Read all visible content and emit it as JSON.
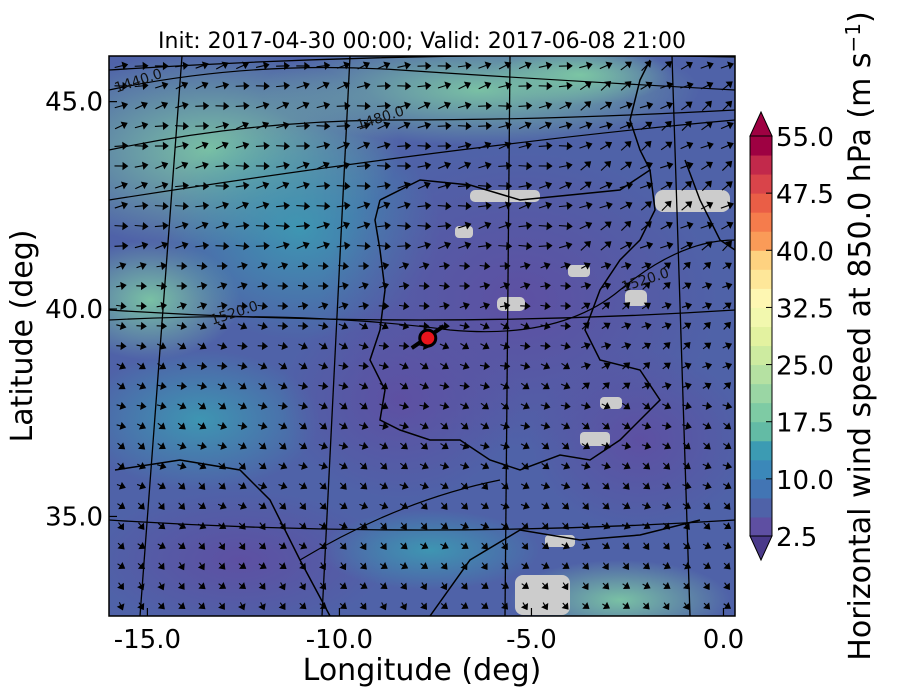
{
  "chart_data": {
    "type": "heatmap",
    "title": "Init: 2017-04-30 00:00; Valid: 2017-06-08 21:00",
    "xlabel": "Longitude (deg)",
    "ylabel": "Latitude (deg)",
    "xlim": [
      -16.0,
      0.3
    ],
    "ylim": [
      32.6,
      46.1
    ],
    "x_ticks": [
      {
        "value": -15.0,
        "label": "-15.0"
      },
      {
        "value": -10.0,
        "label": "-10.0"
      },
      {
        "value": -5.0,
        "label": "-5.0"
      },
      {
        "value": 0.0,
        "label": "0.0"
      }
    ],
    "y_ticks": [
      {
        "value": 35.0,
        "label": "35.0"
      },
      {
        "value": 40.0,
        "label": "40.0"
      },
      {
        "value": 45.0,
        "label": "45.0"
      }
    ],
    "colorbar": {
      "label": "Horizontal wind speed at 850.0 hPa (m s",
      "label_sup": "−1",
      "label_end": ")",
      "min": 2.5,
      "max": 55.0,
      "step": 2.5,
      "extend": "both",
      "ticks": [
        {
          "value": 2.5,
          "label": "2.5"
        },
        {
          "value": 10.0,
          "label": "10.0"
        },
        {
          "value": 17.5,
          "label": "17.5"
        },
        {
          "value": 25.0,
          "label": "25.0"
        },
        {
          "value": 32.5,
          "label": "32.5"
        },
        {
          "value": 40.0,
          "label": "40.0"
        },
        {
          "value": 47.5,
          "label": "47.5"
        },
        {
          "value": 55.0,
          "label": "55.0"
        }
      ],
      "colors": [
        "#5e4fa2",
        "#4f62a8",
        "#4275b4",
        "#3b88b9",
        "#3c9bb3",
        "#4aaca8",
        "#63bba5",
        "#7ecba4",
        "#9ad6a4",
        "#b5e1a2",
        "#cdebA0",
        "#e3f2a0",
        "#f2f8ae",
        "#fef7b2",
        "#fee799",
        "#fed280",
        "#fdb868",
        "#fa9b58",
        "#f57c4c",
        "#ea5e46",
        "#d9444a",
        "#c2294b",
        "#9e0142"
      ],
      "under_color": "#4a3a8a",
      "over_color": "#9e0142"
    },
    "contours": [
      {
        "label": "1440.0",
        "lon": -15.2,
        "lat": 45.4
      },
      {
        "label": "1480.0",
        "lon": -8.9,
        "lat": 44.5
      },
      {
        "label": "1520.0",
        "lon": -12.7,
        "lat": 39.8
      },
      {
        "label": "1520.0",
        "lon": -2.0,
        "lat": 40.6
      }
    ],
    "site_marker": {
      "lon": -7.7,
      "lat": 39.3,
      "color": "#e8141c"
    },
    "land_mask_color": "#cccccc"
  }
}
